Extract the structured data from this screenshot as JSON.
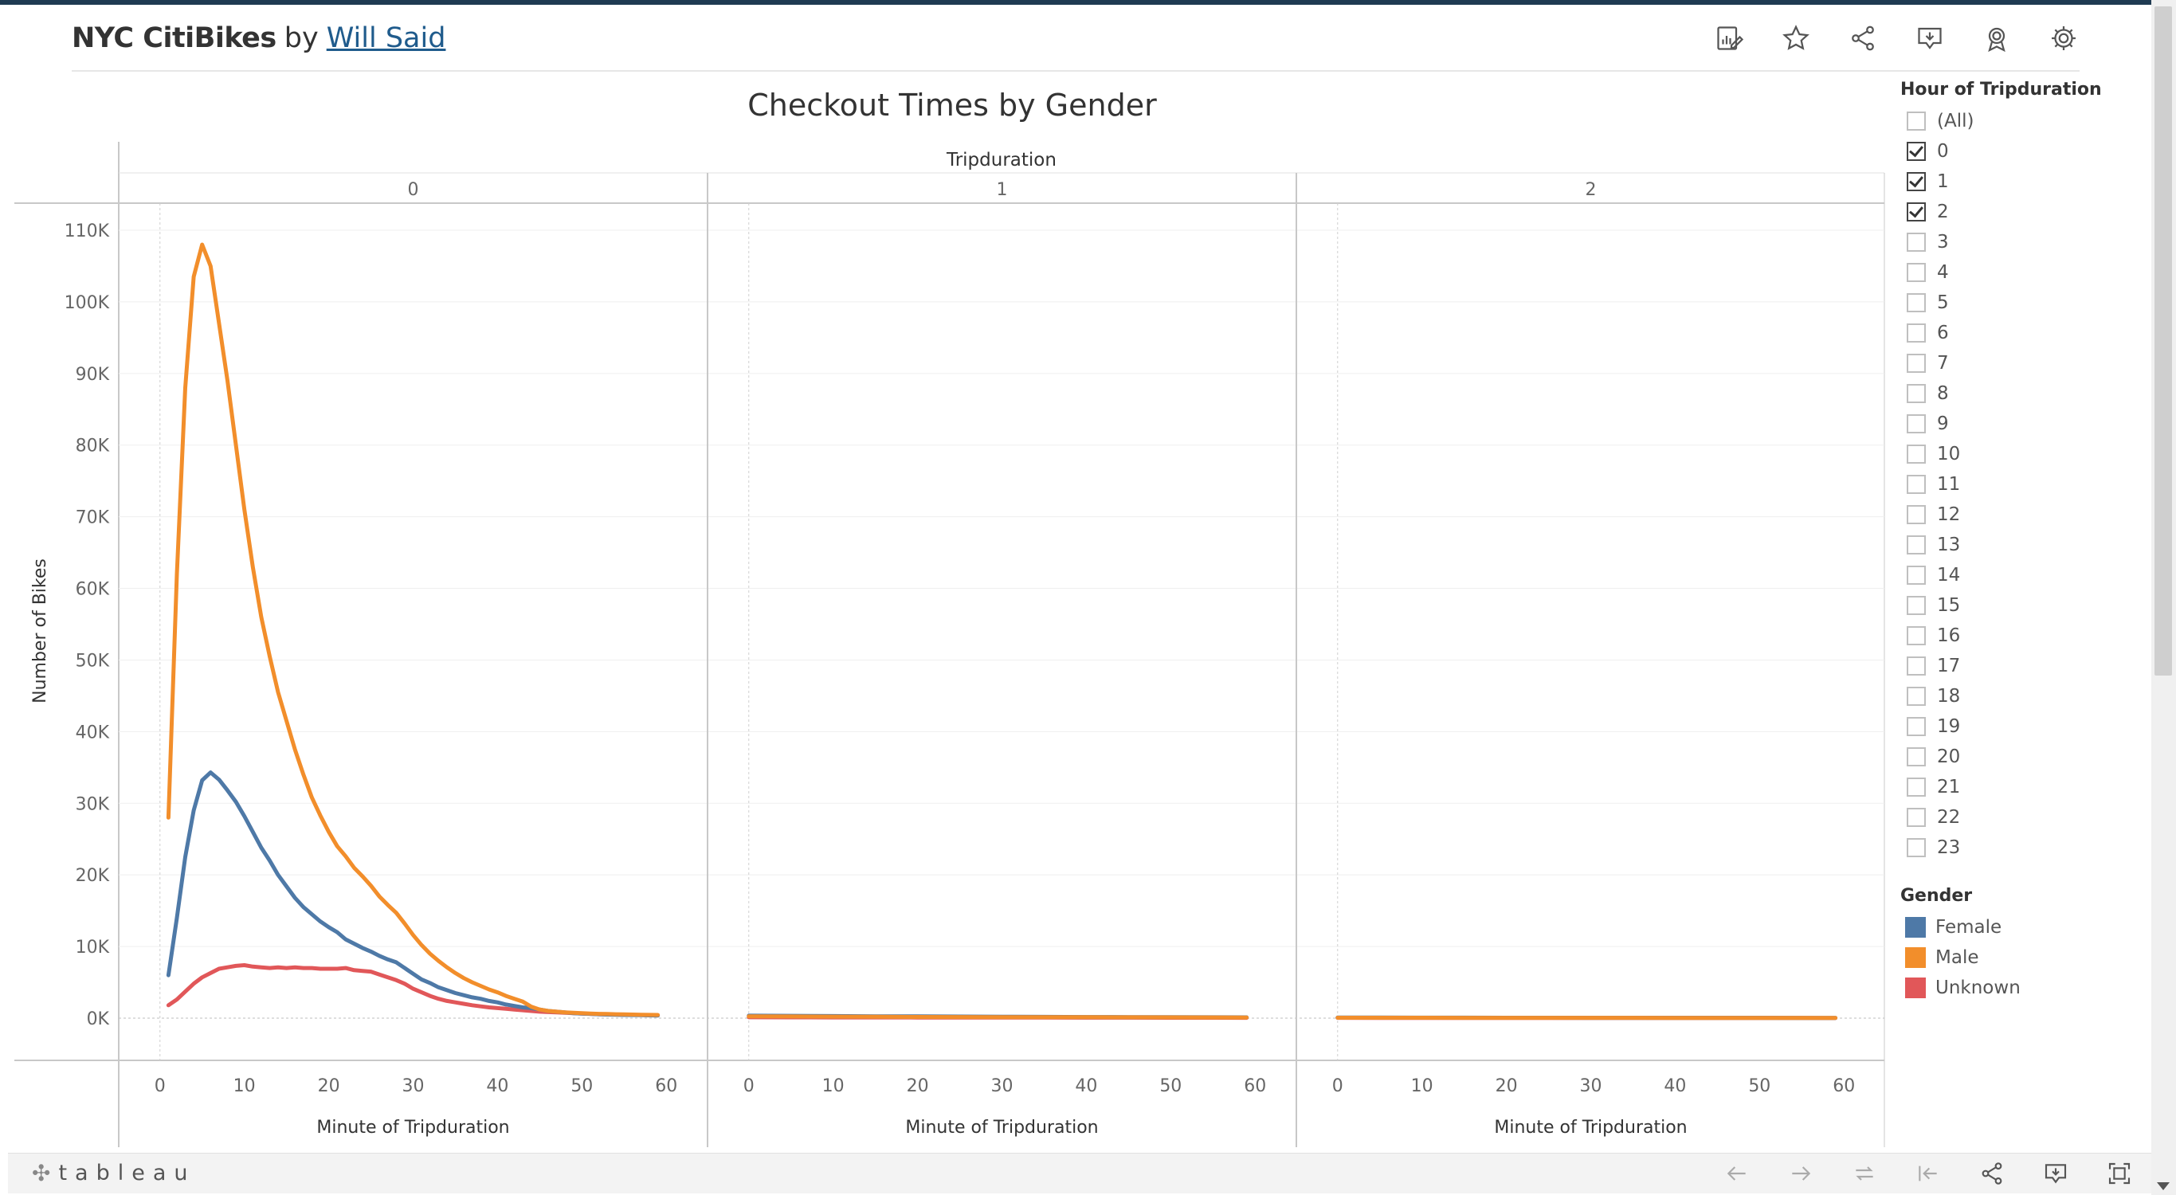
{
  "header": {
    "title": "NYC CitiBikes",
    "by": "by",
    "author": "Will Said"
  },
  "toolbar": {
    "icons": [
      "edit-icon",
      "star-icon",
      "share-icon",
      "download-icon",
      "badge-icon",
      "gear-icon"
    ]
  },
  "chart_data": {
    "type": "line",
    "title": "Checkout Times by Gender",
    "column_header": "Tripduration",
    "panels": [
      "0",
      "1",
      "2"
    ],
    "xlabel": "Minute of Tripduration",
    "ylabel": "Number of Bikes",
    "xticks": [
      "0",
      "10",
      "20",
      "30",
      "40",
      "50",
      "60"
    ],
    "yticks": [
      "0K",
      "10K",
      "20K",
      "30K",
      "40K",
      "50K",
      "60K",
      "70K",
      "80K",
      "90K",
      "100K",
      "110K"
    ],
    "xlim": [
      -3,
      63
    ],
    "ylim": [
      0,
      113000
    ],
    "series": [
      {
        "name": "Female",
        "color": "#4e79a7",
        "panels": [
          {
            "x": [
              1,
              2,
              3,
              4,
              5,
              6,
              7,
              8,
              9,
              10,
              11,
              12,
              13,
              14,
              15,
              16,
              17,
              18,
              19,
              20,
              21,
              22,
              23,
              24,
              25,
              26,
              27,
              28,
              29,
              30,
              31,
              32,
              33,
              34,
              35,
              36,
              37,
              38,
              39,
              40,
              41,
              42,
              43,
              44,
              45,
              46,
              47,
              48,
              49,
              50,
              51,
              52,
              53,
              54,
              55,
              56,
              57,
              58,
              59
            ],
            "y": [
              6000,
              14000,
              22500,
              29000,
              33200,
              34300,
              33300,
              31800,
              30200,
              28200,
              26000,
              23800,
              22000,
              20000,
              18400,
              16800,
              15500,
              14500,
              13500,
              12700,
              12000,
              11000,
              10400,
              9800,
              9300,
              8700,
              8200,
              7800,
              7000,
              6200,
              5400,
              4900,
              4300,
              3900,
              3500,
              3200,
              2900,
              2700,
              2400,
              2200,
              1900,
              1700,
              1500,
              1400,
              1200,
              1000,
              900,
              800,
              700,
              650,
              600,
              550,
              500,
              480,
              450,
              430,
              410,
              390,
              370
            ]
          },
          {
            "x": [
              0,
              5,
              10,
              15,
              20,
              25,
              30,
              35,
              40,
              45,
              50,
              55,
              59
            ],
            "y": [
              350,
              320,
              290,
              260,
              240,
              220,
              200,
              180,
              160,
              140,
              130,
              120,
              110
            ]
          },
          {
            "x": [
              0,
              5,
              10,
              15,
              20,
              25,
              30,
              35,
              40,
              45,
              50,
              55,
              59
            ],
            "y": [
              80,
              75,
              70,
              65,
              60,
              55,
              50,
              48,
              45,
              42,
              40,
              38,
              35
            ]
          }
        ]
      },
      {
        "name": "Male",
        "color": "#f28e2b",
        "panels": [
          {
            "x": [
              1,
              2,
              3,
              4,
              5,
              6,
              7,
              8,
              9,
              10,
              11,
              12,
              13,
              14,
              15,
              16,
              17,
              18,
              19,
              20,
              21,
              22,
              23,
              24,
              25,
              26,
              27,
              28,
              29,
              30,
              31,
              32,
              33,
              34,
              35,
              36,
              37,
              38,
              39,
              40,
              41,
              42,
              43,
              44,
              45,
              46,
              47,
              48,
              49,
              50,
              51,
              52,
              53,
              54,
              55,
              56,
              57,
              58,
              59
            ],
            "y": [
              28000,
              62000,
              88000,
              103500,
              108000,
              105000,
              97000,
              89000,
              80000,
              71000,
              63000,
              56000,
              50500,
              45500,
              41500,
              37500,
              34000,
              30800,
              28300,
              26000,
              24000,
              22600,
              21000,
              19800,
              18500,
              17000,
              15800,
              14700,
              13200,
              11600,
              10200,
              9000,
              8000,
              7100,
              6300,
              5600,
              5000,
              4500,
              4000,
              3600,
              3100,
              2700,
              2300,
              1600,
              1200,
              1000,
              900,
              800,
              750,
              700,
              650,
              600,
              580,
              550,
              520,
              500,
              480,
              460,
              440
            ]
          },
          {
            "x": [
              0,
              5,
              10,
              15,
              20,
              25,
              30,
              35,
              40,
              45,
              50,
              55,
              59
            ],
            "y": [
              250,
              230,
              210,
              190,
              170,
              160,
              150,
              140,
              130,
              120,
              110,
              100,
              90
            ]
          },
          {
            "x": [
              0,
              5,
              10,
              15,
              20,
              25,
              30,
              35,
              40,
              45,
              50,
              55,
              59
            ],
            "y": [
              60,
              55,
              52,
              50,
              48,
              45,
              42,
              40,
              38,
              36,
              34,
              32,
              30
            ]
          }
        ]
      },
      {
        "name": "Unknown",
        "color": "#e15759",
        "panels": [
          {
            "x": [
              1,
              2,
              3,
              4,
              5,
              6,
              7,
              8,
              9,
              10,
              11,
              12,
              13,
              14,
              15,
              16,
              17,
              18,
              19,
              20,
              21,
              22,
              23,
              24,
              25,
              26,
              27,
              28,
              29,
              30,
              31,
              32,
              33,
              34,
              35,
              36,
              37,
              38,
              39,
              40,
              41,
              42,
              43,
              44,
              45,
              46,
              47,
              48,
              49,
              50,
              51,
              52,
              53,
              54,
              55,
              56,
              57,
              58,
              59
            ],
            "y": [
              1800,
              2600,
              3700,
              4800,
              5700,
              6300,
              6900,
              7100,
              7300,
              7400,
              7200,
              7100,
              7000,
              7100,
              7000,
              7100,
              7000,
              7000,
              6900,
              6900,
              6900,
              7000,
              6700,
              6600,
              6500,
              6100,
              5700,
              5300,
              4800,
              4100,
              3600,
              3100,
              2700,
              2400,
              2200,
              2000,
              1800,
              1650,
              1500,
              1400,
              1300,
              1200,
              1100,
              1000,
              900,
              850,
              800,
              750,
              700,
              650,
              600,
              550,
              520,
              500,
              480,
              460,
              440,
              420,
              400
            ]
          },
          {
            "x": [
              0,
              5,
              10,
              15,
              20,
              25,
              30,
              35,
              40,
              45,
              50,
              55,
              59
            ],
            "y": [
              120,
              110,
              100,
              95,
              90,
              85,
              80,
              75,
              70,
              65,
              60,
              55,
              50
            ]
          },
          {
            "x": [
              0,
              5,
              10,
              15,
              20,
              25,
              30,
              35,
              40,
              45,
              50,
              55,
              59
            ],
            "y": [
              40,
              38,
              36,
              34,
              32,
              30,
              28,
              26,
              24,
              22,
              20,
              18,
              16
            ]
          }
        ]
      }
    ],
    "legend": {
      "title": "Gender",
      "placement": "right",
      "items": [
        {
          "label": "Female",
          "color": "#4e79a7"
        },
        {
          "label": "Male",
          "color": "#f28e2b"
        },
        {
          "label": "Unknown",
          "color": "#e15759"
        }
      ]
    },
    "grid": "horizontal"
  },
  "filter": {
    "title": "Hour of Tripduration",
    "items": [
      {
        "label": "(All)",
        "checked": false
      },
      {
        "label": "0",
        "checked": true
      },
      {
        "label": "1",
        "checked": true
      },
      {
        "label": "2",
        "checked": true
      },
      {
        "label": "3",
        "checked": false
      },
      {
        "label": "4",
        "checked": false
      },
      {
        "label": "5",
        "checked": false
      },
      {
        "label": "6",
        "checked": false
      },
      {
        "label": "7",
        "checked": false
      },
      {
        "label": "8",
        "checked": false
      },
      {
        "label": "9",
        "checked": false
      },
      {
        "label": "10",
        "checked": false
      },
      {
        "label": "11",
        "checked": false
      },
      {
        "label": "12",
        "checked": false
      },
      {
        "label": "13",
        "checked": false
      },
      {
        "label": "14",
        "checked": false
      },
      {
        "label": "15",
        "checked": false
      },
      {
        "label": "16",
        "checked": false
      },
      {
        "label": "17",
        "checked": false
      },
      {
        "label": "18",
        "checked": false
      },
      {
        "label": "19",
        "checked": false
      },
      {
        "label": "20",
        "checked": false
      },
      {
        "label": "21",
        "checked": false
      },
      {
        "label": "22",
        "checked": false
      },
      {
        "label": "23",
        "checked": false
      }
    ]
  },
  "footer": {
    "logo_text": "tableau",
    "icons": [
      "undo-icon",
      "redo-icon",
      "replay-icon",
      "revert-icon",
      "share-icon",
      "download-icon",
      "fullscreen-icon"
    ]
  }
}
